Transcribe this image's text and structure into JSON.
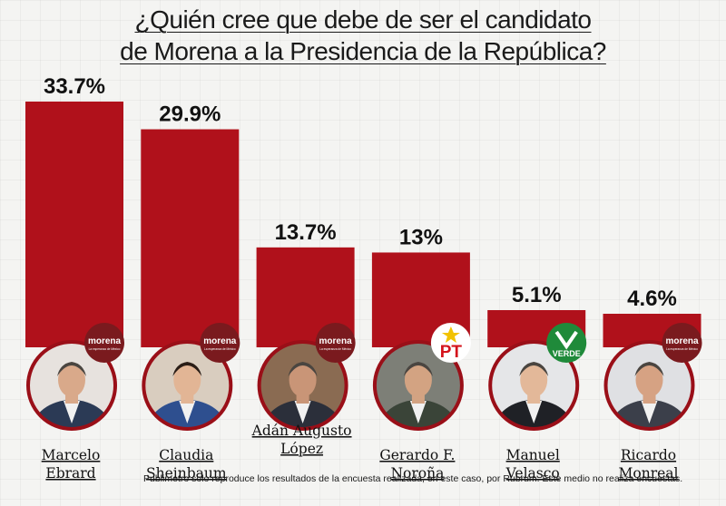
{
  "title_lines": [
    "¿Quién cree que debe de ser el candidato",
    "de Morena a la Presidencia de la República?"
  ],
  "footnote": "Publimetro solo reproduce los resultados de la encuesta realizada, en este caso, por Rubrum. Este medio no realiza encuestas.",
  "colors": {
    "bar": "#b0111b",
    "ring": "#9a0f18",
    "party_morena": "#7a1a1e",
    "party_pt": "#d4141c",
    "party_verde": "#1f8a3a"
  },
  "chart_data": {
    "type": "bar",
    "title": "¿Quién cree que debe de ser el candidato de Morena a la Presidencia de la República?",
    "categories": [
      "Marcelo Ebrard",
      "Claudia Sheinbaum",
      "Adán Augusto López",
      "Gerardo F. Noroña",
      "Manuel Velasco",
      "Ricardo Monreal"
    ],
    "label_lines": [
      [
        "Marcelo",
        "Ebrard"
      ],
      [
        "Claudia",
        "Sheinbaum"
      ],
      [
        "Adán Augusto",
        "López"
      ],
      [
        "Gerardo F.",
        "Noroña"
      ],
      [
        "Manuel",
        "Velasco"
      ],
      [
        "Ricardo",
        "Monreal"
      ]
    ],
    "values": [
      33.7,
      29.9,
      13.7,
      13,
      5.1,
      4.6
    ],
    "value_labels": [
      "33.7%",
      "29.9%",
      "13.7%",
      "13%",
      "5.1%",
      "4.6%"
    ],
    "parties": [
      "morena",
      "morena",
      "morena",
      "PT",
      "VERDE",
      "morena"
    ],
    "party_texts": {
      "morena": "morena",
      "morena_sub": "La esperanza de México",
      "PT": "PT",
      "VERDE": "VERDE"
    },
    "xlabel": "",
    "ylabel": "",
    "grid": false
  }
}
